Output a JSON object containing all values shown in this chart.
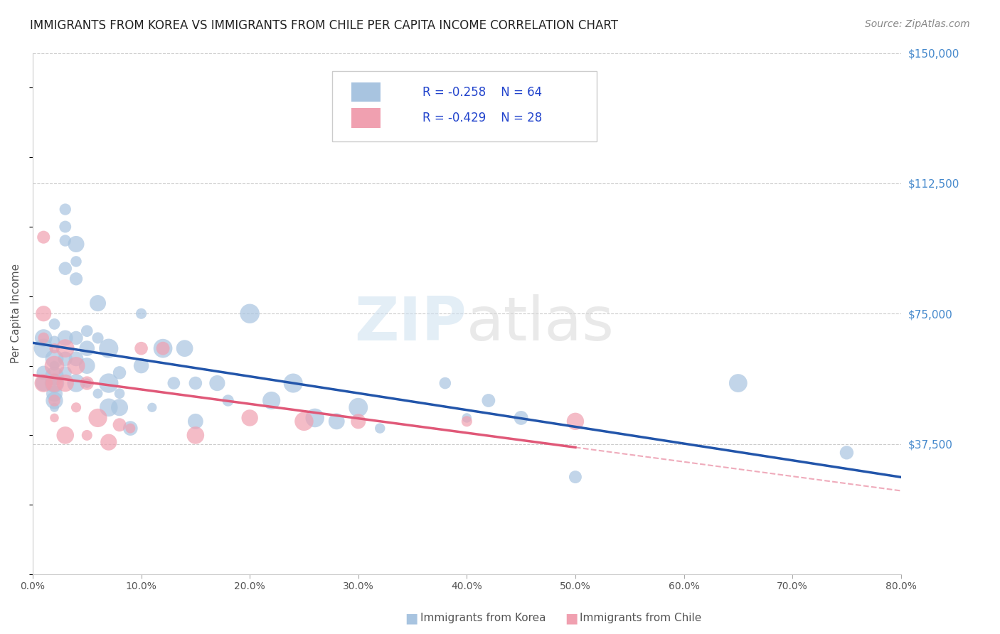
{
  "title": "IMMIGRANTS FROM KOREA VS IMMIGRANTS FROM CHILE PER CAPITA INCOME CORRELATION CHART",
  "source": "Source: ZipAtlas.com",
  "ylabel": "Per Capita Income",
  "y_ticks": [
    0,
    37500,
    75000,
    112500,
    150000
  ],
  "y_tick_labels": [
    "",
    "$37,500",
    "$75,000",
    "$112,500",
    "$150,000"
  ],
  "xlim": [
    0.0,
    0.8
  ],
  "ylim": [
    0,
    150000
  ],
  "korea_R": -0.258,
  "korea_N": 64,
  "chile_R": -0.429,
  "chile_N": 28,
  "korea_color": "#a8c4e0",
  "chile_color": "#f0a0b0",
  "korea_line_color": "#2255aa",
  "chile_line_color": "#e05878",
  "legend_korea_label": "Immigrants from Korea",
  "legend_chile_label": "Immigrants from Chile",
  "watermark_zip": "ZIP",
  "watermark_atlas": "atlas",
  "korea_x": [
    0.01,
    0.01,
    0.01,
    0.01,
    0.02,
    0.02,
    0.02,
    0.02,
    0.02,
    0.02,
    0.02,
    0.02,
    0.02,
    0.03,
    0.03,
    0.03,
    0.03,
    0.03,
    0.03,
    0.03,
    0.04,
    0.04,
    0.04,
    0.04,
    0.04,
    0.04,
    0.05,
    0.05,
    0.05,
    0.05,
    0.06,
    0.06,
    0.06,
    0.07,
    0.07,
    0.07,
    0.08,
    0.08,
    0.08,
    0.09,
    0.1,
    0.1,
    0.11,
    0.12,
    0.13,
    0.14,
    0.15,
    0.15,
    0.17,
    0.18,
    0.2,
    0.22,
    0.24,
    0.26,
    0.28,
    0.3,
    0.32,
    0.38,
    0.4,
    0.42,
    0.45,
    0.5,
    0.65,
    0.75
  ],
  "korea_y": [
    58000,
    65000,
    68000,
    55000,
    72000,
    67000,
    60000,
    57000,
    52000,
    50000,
    48000,
    55000,
    62000,
    100000,
    105000,
    96000,
    88000,
    68000,
    62000,
    58000,
    95000,
    90000,
    85000,
    68000,
    62000,
    55000,
    70000,
    65000,
    60000,
    55000,
    78000,
    68000,
    52000,
    65000,
    55000,
    48000,
    58000,
    52000,
    48000,
    42000,
    75000,
    60000,
    48000,
    65000,
    55000,
    65000,
    55000,
    44000,
    55000,
    50000,
    75000,
    50000,
    55000,
    45000,
    44000,
    48000,
    42000,
    55000,
    45000,
    50000,
    45000,
    28000,
    55000,
    35000
  ],
  "chile_x": [
    0.01,
    0.01,
    0.01,
    0.01,
    0.02,
    0.02,
    0.02,
    0.02,
    0.02,
    0.03,
    0.03,
    0.03,
    0.04,
    0.04,
    0.05,
    0.05,
    0.06,
    0.07,
    0.08,
    0.09,
    0.1,
    0.12,
    0.15,
    0.2,
    0.25,
    0.3,
    0.4,
    0.5
  ],
  "chile_y": [
    97000,
    75000,
    68000,
    55000,
    65000,
    60000,
    55000,
    50000,
    45000,
    65000,
    55000,
    40000,
    60000,
    48000,
    55000,
    40000,
    45000,
    38000,
    43000,
    42000,
    65000,
    65000,
    40000,
    45000,
    44000,
    44000,
    44000,
    44000
  ]
}
